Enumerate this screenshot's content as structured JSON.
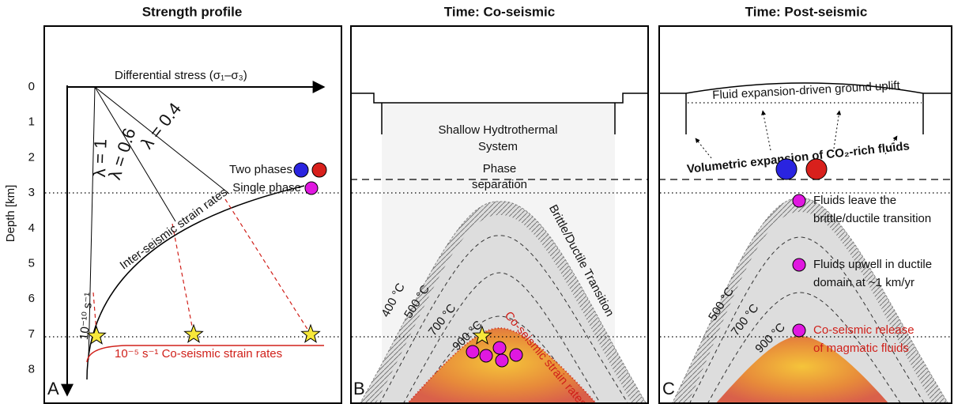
{
  "axis": {
    "label": "Depth [km]",
    "ticks": [
      0,
      1,
      2,
      3,
      4,
      5,
      6,
      7,
      8
    ]
  },
  "panel_a": {
    "title": "Strength profile",
    "letter": "A",
    "stress_axis": "Differential stress (σ₁–σ₃)",
    "lambda_labels": [
      "λ = 1",
      "λ = 0.6",
      "λ = 0.4"
    ],
    "legend": [
      "Two phases",
      "Single phase"
    ],
    "inter_seismic": "Inter-seismic strain rates",
    "inter_rate": "10⁻¹⁰ s⁻¹",
    "co_seismic": "10⁻⁵ s⁻¹ Co-seismic strain rates"
  },
  "panel_b": {
    "title": "Time: Co-seismic",
    "letter": "B",
    "hydrothermal": [
      "Shallow Hydtrothermal",
      "System"
    ],
    "phase_separation": [
      "Phase",
      "separation"
    ],
    "transition": "Brittle/Ductile Transition",
    "isotherms": [
      "400 °C",
      "500 °C",
      "700 °C",
      "900 °C"
    ],
    "strain": "Co-seismic strain rates"
  },
  "panel_c": {
    "title": "Time: Post-seismic",
    "letter": "C",
    "uplift": "Fluid expansion-driven ground uplift",
    "expansion": "Volumetric expansion of CO₂-rich fluids",
    "notes": [
      [
        "Fluids leave the",
        "brittle/ductile transition"
      ],
      [
        "Fluids upwell in ductile",
        "domain at ~1 km/yr"
      ],
      [
        "Co-seismic release",
        "of magmatic fluids"
      ]
    ],
    "isotherms": [
      "500 °C",
      "700 °C",
      "900 °C"
    ]
  }
}
